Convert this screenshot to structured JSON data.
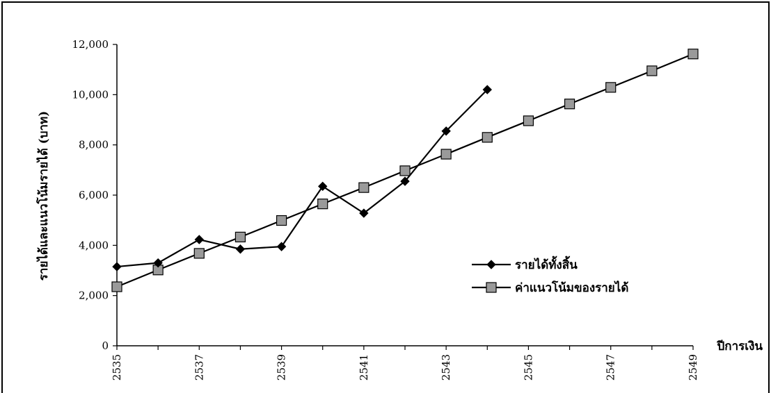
{
  "chart_data": {
    "type": "line",
    "xlabel": "ปีการเงิน",
    "ylabel": "รายได้และแนวโน้มรายได้ (บาท)",
    "ylim": [
      0,
      12000
    ],
    "xlim": [
      2535,
      2549
    ],
    "y_ticks": [
      "0",
      "2,000",
      "4,000",
      "6,000",
      "8,000",
      "10,000",
      "12,000"
    ],
    "y_tick_values": [
      0,
      2000,
      4000,
      6000,
      8000,
      10000,
      12000
    ],
    "x_tick_labels": [
      "2535",
      "2537",
      "2539",
      "2541",
      "2543",
      "2545",
      "2547",
      "2549"
    ],
    "x_tick_values": [
      2535,
      2537,
      2539,
      2541,
      2543,
      2545,
      2547,
      2549
    ],
    "x_minor_ticks": [
      2535,
      2536,
      2537,
      2538,
      2539,
      2540,
      2541,
      2542,
      2543,
      2544,
      2545,
      2546,
      2547,
      2548,
      2549
    ],
    "grid": false,
    "legend_position": "right",
    "series": [
      {
        "name": "รายได้ทั้งสิ้น",
        "marker": "diamond",
        "color": "#000000",
        "x": [
          2535,
          2536,
          2537,
          2538,
          2539,
          2540,
          2541,
          2542,
          2543,
          2544
        ],
        "values": [
          3150,
          3300,
          4230,
          3850,
          3950,
          6350,
          5280,
          6550,
          8550,
          10200
        ]
      },
      {
        "name": "ค่าแนวโน้มของรายได้",
        "marker": "square",
        "color": "#000000",
        "marker_fill": "#9a9a9a",
        "x": [
          2535,
          2536,
          2537,
          2538,
          2539,
          2540,
          2541,
          2542,
          2543,
          2544,
          2545,
          2546,
          2547,
          2548,
          2549
        ],
        "values": [
          2350,
          3020,
          3680,
          4330,
          4990,
          5650,
          6300,
          6970,
          7630,
          8300,
          8960,
          9630,
          10290,
          10950,
          11620
        ]
      }
    ]
  }
}
